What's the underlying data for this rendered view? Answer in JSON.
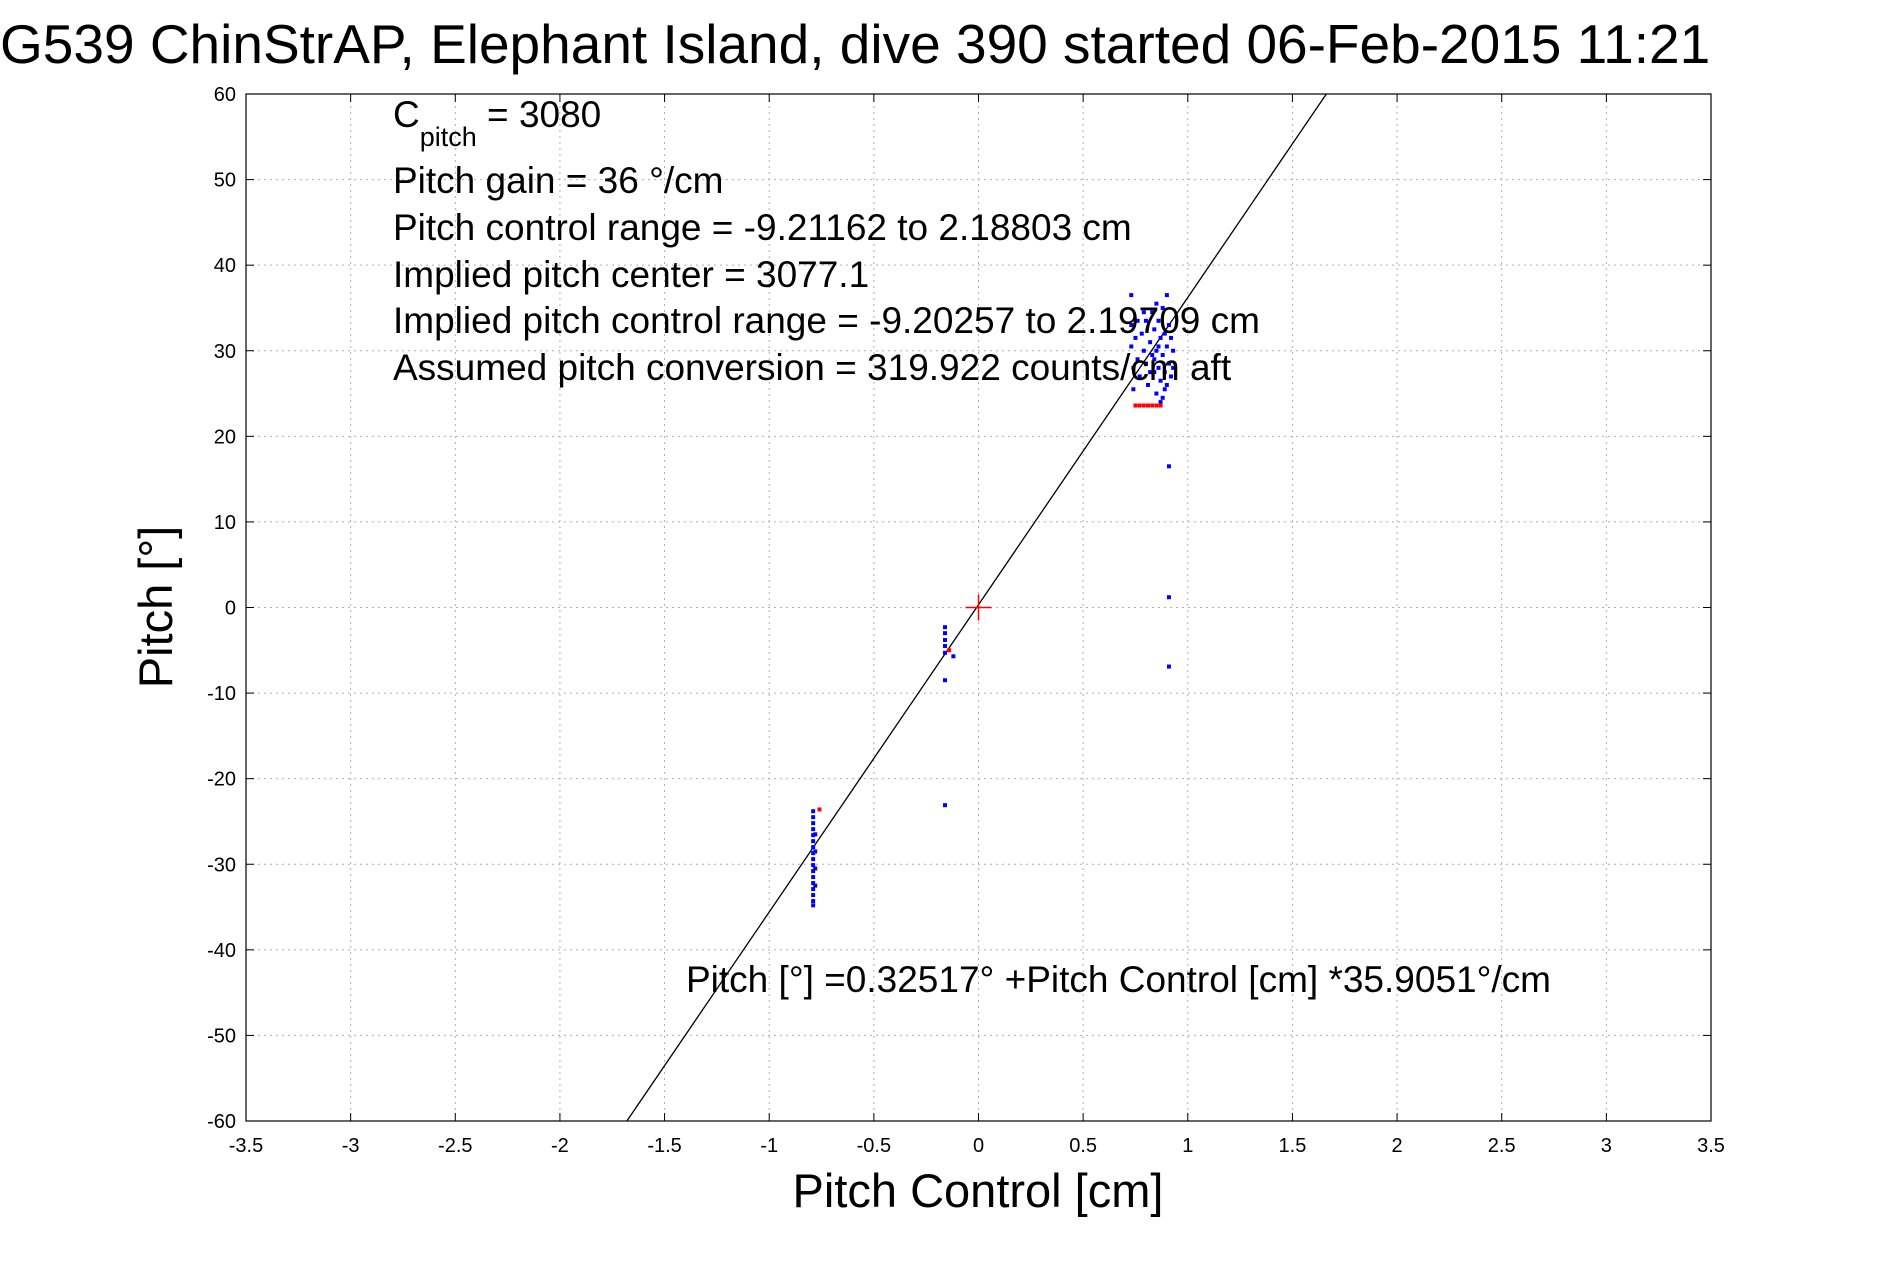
{
  "chart_data": {
    "type": "scatter",
    "title": "G539 ChinStrAP, Elephant Island, dive 390 started 06-Feb-2015 11:21",
    "xlabel": "Pitch Control [cm]",
    "ylabel": "Pitch [°]",
    "xlim": [
      -3.5,
      3.5
    ],
    "ylim": [
      -60,
      60
    ],
    "xticks": [
      -3.5,
      -3,
      -2.5,
      -2,
      -1.5,
      -1,
      -0.5,
      0,
      0.5,
      1,
      1.5,
      2,
      2.5,
      3,
      3.5
    ],
    "yticks": [
      -60,
      -50,
      -40,
      -30,
      -20,
      -10,
      0,
      10,
      20,
      30,
      40,
      50,
      60
    ],
    "xtick_labels": [
      "-3.5",
      "-3",
      "-2.5",
      "-2",
      "-1.5",
      "-1",
      "-0.5",
      "0",
      "0.5",
      "1",
      "1.5",
      "2",
      "2.5",
      "3",
      "3.5"
    ],
    "ytick_labels": [
      "-60",
      "-50",
      "-40",
      "-30",
      "-20",
      "-10",
      "0",
      "10",
      "20",
      "30",
      "40",
      "50",
      "60"
    ],
    "grid": true,
    "colors": {
      "blue": "#0000ff",
      "red": "#ff0000",
      "line": "#000000"
    },
    "series": [
      {
        "color": "blue",
        "points": [
          [
            -0.79,
            -23.8
          ],
          [
            -0.79,
            -24.5
          ],
          [
            -0.79,
            -25.2
          ],
          [
            -0.79,
            -25.9
          ],
          [
            -0.79,
            -26.6
          ],
          [
            -0.79,
            -27.3
          ],
          [
            -0.79,
            -28.0
          ],
          [
            -0.79,
            -28.7
          ],
          [
            -0.79,
            -29.4
          ],
          [
            -0.79,
            -30.1
          ],
          [
            -0.79,
            -30.8
          ],
          [
            -0.79,
            -31.5
          ],
          [
            -0.79,
            -32.2
          ],
          [
            -0.79,
            -32.9
          ],
          [
            -0.79,
            -33.6
          ],
          [
            -0.79,
            -34.3
          ],
          [
            -0.79,
            -34.8
          ],
          [
            -0.78,
            -26.5
          ],
          [
            -0.78,
            -28.5
          ],
          [
            -0.78,
            -30.5
          ],
          [
            -0.78,
            -32.5
          ],
          [
            -0.16,
            -2.3
          ],
          [
            -0.16,
            -3.0
          ],
          [
            -0.16,
            -3.8
          ],
          [
            -0.16,
            -4.5
          ],
          [
            -0.16,
            -5.3
          ],
          [
            -0.16,
            -8.5
          ],
          [
            -0.16,
            -23.1
          ],
          [
            -0.12,
            -5.7
          ],
          [
            0.91,
            16.5
          ],
          [
            0.91,
            1.2
          ],
          [
            0.91,
            -6.9
          ],
          [
            0.73,
            36.5
          ],
          [
            0.73,
            33.0
          ],
          [
            0.73,
            30.5
          ],
          [
            0.74,
            28.0
          ],
          [
            0.74,
            25.5
          ],
          [
            0.75,
            31.5
          ],
          [
            0.76,
            29.0
          ],
          [
            0.77,
            27.0
          ],
          [
            0.78,
            32.0
          ],
          [
            0.79,
            30.0
          ],
          [
            0.8,
            28.5
          ],
          [
            0.8,
            33.5
          ],
          [
            0.81,
            26.0
          ],
          [
            0.82,
            31.0
          ],
          [
            0.83,
            29.5
          ],
          [
            0.83,
            34.5
          ],
          [
            0.84,
            27.5
          ],
          [
            0.84,
            32.5
          ],
          [
            0.85,
            30.0
          ],
          [
            0.85,
            25.0
          ],
          [
            0.86,
            33.5
          ],
          [
            0.86,
            28.0
          ],
          [
            0.87,
            31.5
          ],
          [
            0.87,
            26.5
          ],
          [
            0.88,
            29.5
          ],
          [
            0.88,
            35.0
          ],
          [
            0.88,
            24.5
          ],
          [
            0.89,
            32.0
          ],
          [
            0.89,
            27.5
          ],
          [
            0.9,
            30.5
          ],
          [
            0.9,
            36.5
          ],
          [
            0.9,
            26.0
          ],
          [
            0.91,
            33.0
          ],
          [
            0.91,
            28.5
          ],
          [
            0.92,
            31.5
          ],
          [
            0.92,
            27.0
          ],
          [
            0.93,
            30.0
          ],
          [
            0.93,
            28.0
          ],
          [
            0.86,
            30.5
          ],
          [
            0.84,
            29.0
          ],
          [
            0.82,
            27.5
          ],
          [
            0.87,
            24.0
          ],
          [
            0.89,
            25.5
          ],
          [
            0.85,
            35.5
          ],
          [
            0.79,
            34.5
          ],
          [
            0.76,
            33.5
          ]
        ]
      },
      {
        "color": "red",
        "points": [
          [
            0.75,
            23.6
          ],
          [
            0.77,
            23.6
          ],
          [
            0.79,
            23.6
          ],
          [
            0.81,
            23.6
          ],
          [
            0.83,
            23.6
          ],
          [
            0.85,
            23.6
          ],
          [
            0.87,
            23.6
          ],
          [
            -0.76,
            -23.6
          ],
          [
            -0.14,
            -5.0
          ]
        ]
      }
    ],
    "fit_line": {
      "intercept": 0.32517,
      "slope": 35.9051
    },
    "center_marker": {
      "x": 0,
      "y": 0,
      "color": "red"
    },
    "annotations": {
      "c_pitch_main": "C",
      "c_pitch_sub": "pitch",
      "c_pitch_value": " = 3080",
      "gain": "Pitch gain = 36 °/cm",
      "range": "Pitch control range = -9.21162 to 2.18803 cm",
      "center": "Implied pitch center = 3077.1",
      "implied_range": "Implied pitch control range = -9.20257 to 2.19709 cm",
      "conversion": "Assumed pitch conversion = 319.922 counts/cm aft",
      "equation": "Pitch [°] =0.32517° +Pitch Control [cm] *35.9051°/cm"
    }
  }
}
